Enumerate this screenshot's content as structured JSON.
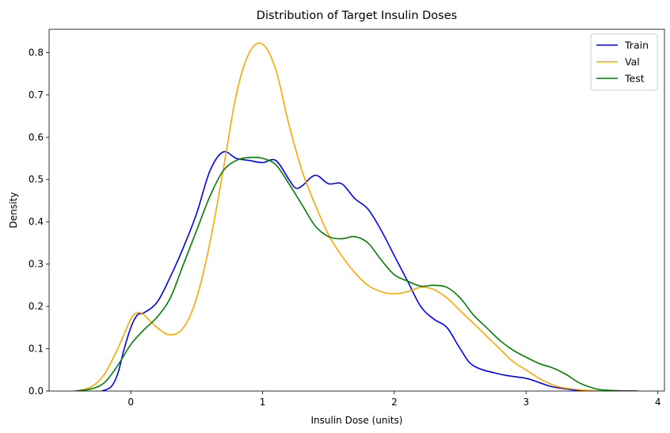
{
  "chart_data": {
    "type": "line",
    "title": "Distribution of Target Insulin Doses",
    "xlabel": "Insulin Dose (units)",
    "ylabel": "Density",
    "xlim": [
      -0.62,
      4.05
    ],
    "ylim": [
      0,
      0.855
    ],
    "xticks": [
      0,
      1,
      2,
      3,
      4
    ],
    "yticks": [
      0.0,
      0.1,
      0.2,
      0.3,
      0.4,
      0.5,
      0.6,
      0.7,
      0.8
    ],
    "xtick_labels": [
      "0",
      "1",
      "2",
      "3",
      "4"
    ],
    "ytick_labels": [
      "0.0",
      "0.1",
      "0.2",
      "0.3",
      "0.4",
      "0.5",
      "0.6",
      "0.7",
      "0.8"
    ],
    "grid": false,
    "legend_position": "top-right",
    "series": [
      {
        "name": "Train",
        "color": "#0000ff",
        "x": [
          -0.22,
          -0.15,
          -0.1,
          -0.05,
          0.0,
          0.05,
          0.1,
          0.2,
          0.3,
          0.4,
          0.5,
          0.6,
          0.7,
          0.8,
          0.9,
          1.0,
          1.1,
          1.2,
          1.25,
          1.3,
          1.4,
          1.5,
          1.6,
          1.7,
          1.8,
          1.9,
          2.0,
          2.1,
          2.2,
          2.3,
          2.4,
          2.5,
          2.6,
          2.8,
          3.0,
          3.1,
          3.2,
          3.35,
          3.45
        ],
        "y": [
          0.0,
          0.01,
          0.04,
          0.1,
          0.15,
          0.18,
          0.185,
          0.21,
          0.27,
          0.34,
          0.42,
          0.52,
          0.565,
          0.55,
          0.545,
          0.54,
          0.545,
          0.5,
          0.48,
          0.485,
          0.51,
          0.49,
          0.49,
          0.455,
          0.43,
          0.38,
          0.32,
          0.26,
          0.2,
          0.17,
          0.15,
          0.1,
          0.06,
          0.04,
          0.03,
          0.02,
          0.01,
          0.003,
          0.0
        ]
      },
      {
        "name": "Val",
        "color": "#ffa500",
        "x": [
          -0.42,
          -0.3,
          -0.2,
          -0.1,
          0.0,
          0.05,
          0.1,
          0.2,
          0.3,
          0.4,
          0.5,
          0.6,
          0.7,
          0.8,
          0.9,
          1.0,
          1.1,
          1.2,
          1.3,
          1.4,
          1.5,
          1.6,
          1.7,
          1.8,
          1.9,
          2.0,
          2.1,
          2.2,
          2.3,
          2.4,
          2.5,
          2.6,
          2.7,
          2.8,
          2.9,
          3.0,
          3.1,
          3.2,
          3.3,
          3.5,
          3.7
        ],
        "y": [
          0.0,
          0.01,
          0.04,
          0.1,
          0.17,
          0.185,
          0.18,
          0.15,
          0.133,
          0.15,
          0.22,
          0.35,
          0.52,
          0.7,
          0.8,
          0.82,
          0.76,
          0.63,
          0.52,
          0.44,
          0.37,
          0.32,
          0.28,
          0.25,
          0.235,
          0.23,
          0.235,
          0.245,
          0.24,
          0.22,
          0.19,
          0.16,
          0.13,
          0.1,
          0.07,
          0.05,
          0.03,
          0.015,
          0.007,
          0.001,
          0.0
        ]
      },
      {
        "name": "Test",
        "color": "#008000",
        "x": [
          -0.42,
          -0.3,
          -0.2,
          -0.1,
          0.0,
          0.1,
          0.2,
          0.3,
          0.4,
          0.5,
          0.6,
          0.7,
          0.8,
          0.9,
          1.0,
          1.1,
          1.2,
          1.3,
          1.4,
          1.5,
          1.6,
          1.7,
          1.8,
          1.9,
          2.0,
          2.1,
          2.2,
          2.3,
          2.4,
          2.5,
          2.6,
          2.7,
          2.8,
          2.9,
          3.0,
          3.1,
          3.2,
          3.3,
          3.4,
          3.5,
          3.6,
          3.85
        ],
        "y": [
          0.0,
          0.005,
          0.02,
          0.06,
          0.11,
          0.145,
          0.175,
          0.22,
          0.3,
          0.38,
          0.46,
          0.52,
          0.545,
          0.552,
          0.55,
          0.535,
          0.49,
          0.44,
          0.39,
          0.365,
          0.36,
          0.365,
          0.35,
          0.31,
          0.275,
          0.26,
          0.248,
          0.25,
          0.245,
          0.22,
          0.18,
          0.15,
          0.12,
          0.097,
          0.08,
          0.065,
          0.055,
          0.04,
          0.02,
          0.008,
          0.002,
          0.0
        ]
      }
    ]
  }
}
